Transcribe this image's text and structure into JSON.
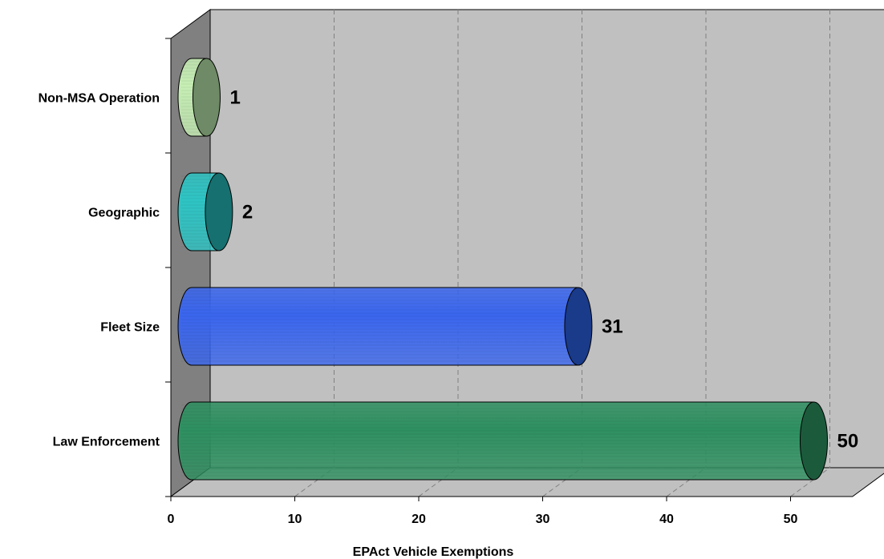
{
  "chart_data": {
    "type": "bar",
    "orientation": "horizontal",
    "style": "3d-cylinder",
    "categories": [
      "Non-MSA Operation",
      "Geographic",
      "Fleet Size",
      "Law Enforcement"
    ],
    "values": [
      1,
      2,
      31,
      50
    ],
    "data_labels": [
      "1",
      "2",
      "31",
      "50"
    ],
    "xlabel": "EPAct Vehicle Exemptions",
    "ylabel": "",
    "xlim": [
      0,
      55
    ],
    "xticks": [
      0,
      10,
      20,
      30,
      40,
      50
    ],
    "xtick_labels": [
      "0",
      "10",
      "20",
      "30",
      "40",
      "50"
    ],
    "grid": true,
    "legend": "none",
    "colors": {
      "wall": "#c0c0c0",
      "side_wall": "#808080",
      "gridline": "#808080",
      "bars": [
        "#c6eeb4",
        "#2ec4c4",
        "#3a66ee",
        "#2e9060"
      ],
      "bar_caps": [
        "#6e8a66",
        "#167070",
        "#1a3a8a",
        "#1c5a3c"
      ]
    }
  }
}
